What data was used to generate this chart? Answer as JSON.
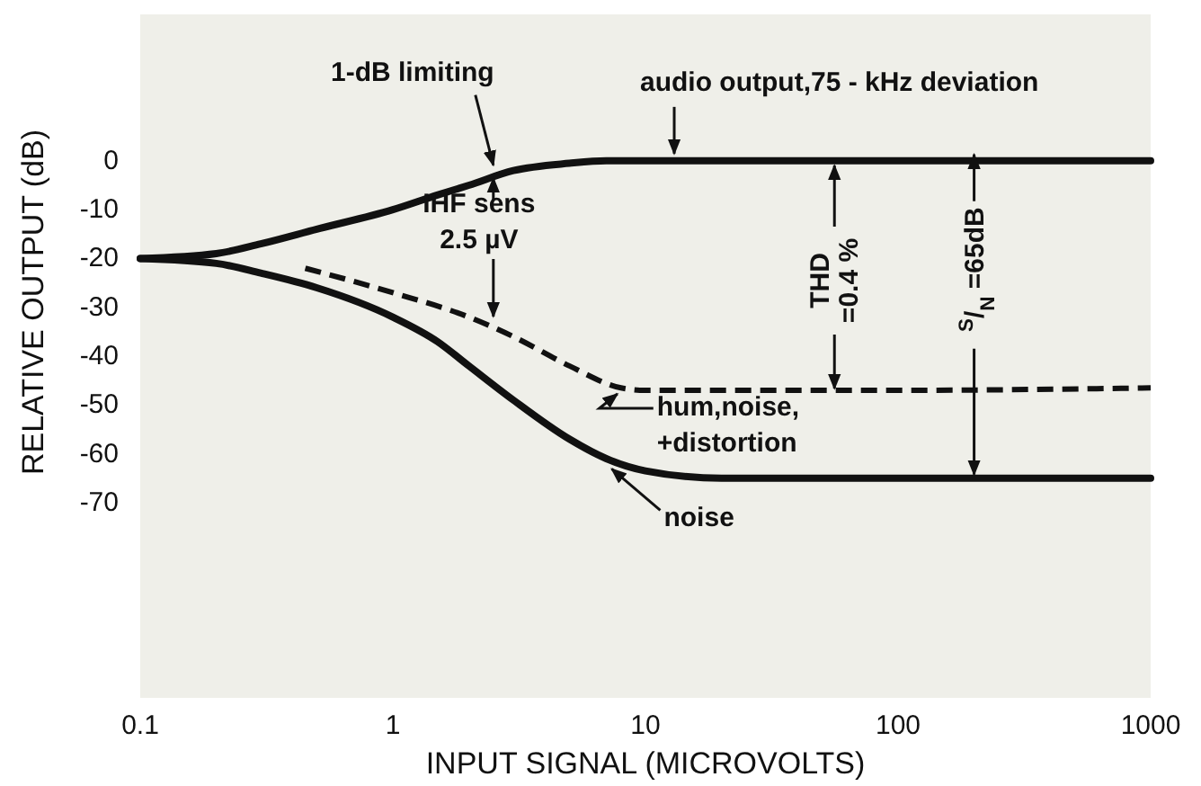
{
  "chart_data": {
    "type": "line",
    "xlabel": "INPUT SIGNAL (MICROVOLTS)",
    "ylabel": "RELATIVE OUTPUT (dB)",
    "log": "x",
    "xlim": [
      0.1,
      1000
    ],
    "xticks": [
      0.1,
      1,
      10,
      100,
      1000
    ],
    "ylim": [
      -110,
      30
    ],
    "yticks": [
      0,
      -10,
      -20,
      -30,
      -40,
      -50,
      -60,
      -70
    ],
    "grid": false,
    "series": [
      {
        "color": "#111111",
        "line_style": "solid",
        "x": [
          0.1,
          0.2,
          0.3,
          0.5,
          1,
          1.5,
          2,
          3,
          5,
          7,
          10,
          20,
          100,
          1000
        ],
        "values": [
          -20,
          -19,
          -17,
          -14,
          -10,
          -7,
          -5,
          -2,
          -0.5,
          0,
          0,
          0,
          0,
          0
        ]
      },
      {
        "color": "#111111",
        "line_style": "dashed",
        "x": [
          0.45,
          1,
          2,
          3,
          5,
          8,
          10,
          20,
          100,
          1000
        ],
        "values": [
          -22,
          -27,
          -32,
          -36,
          -42,
          -46.5,
          -47,
          -47,
          -47,
          -46.5
        ]
      },
      {
        "color": "#111111",
        "line_style": "solid",
        "x": [
          0.1,
          0.2,
          0.3,
          0.5,
          1,
          1.5,
          2,
          3,
          5,
          7,
          10,
          20,
          100,
          1000
        ],
        "values": [
          -20,
          -21,
          -23,
          -26,
          -32,
          -37,
          -42,
          -49,
          -57,
          -61,
          -63.5,
          -65,
          -65,
          -65
        ]
      }
    ],
    "annotations": [
      {
        "text": "1-dB limiting",
        "x": 2.5,
        "y": -2
      },
      {
        "text": "IHF sens\n2.5 µV",
        "x": 2.5,
        "y": -33
      },
      {
        "text": "audio output,75 - kHz deviation",
        "x": 13,
        "y": 0
      },
      {
        "text": "THD\n=0.4 %",
        "x": 56,
        "y": -47
      },
      {
        "text": "$^{S}$/$_{N}$ =65dB",
        "x": 200,
        "y": -65
      },
      {
        "text": "hum,noise,\n+distortion",
        "x": 8,
        "y": -47
      },
      {
        "text": "noise",
        "x": 7,
        "y": -62
      }
    ]
  }
}
